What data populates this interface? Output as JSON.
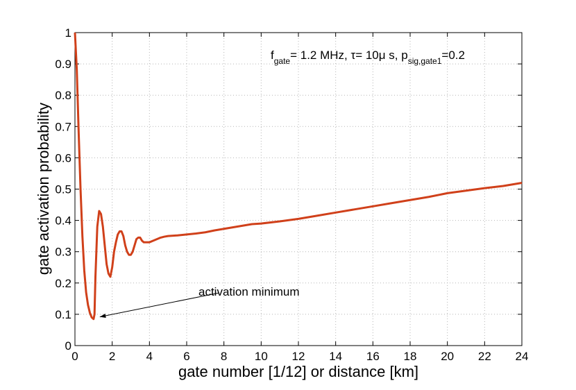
{
  "chart_data": {
    "type": "line",
    "title": "",
    "xlabel": "gate number [1/12] or distance [km]",
    "ylabel": "gate activation probability",
    "xlim": [
      0,
      24
    ],
    "ylim": [
      0,
      1
    ],
    "xticks": [
      0,
      2,
      4,
      6,
      8,
      10,
      12,
      14,
      16,
      18,
      20,
      22,
      24
    ],
    "yticks": [
      0,
      0.1,
      0.2,
      0.3,
      0.4,
      0.5,
      0.6,
      0.7,
      0.8,
      0.9,
      1
    ],
    "ytick_labels": [
      "0",
      "0.1",
      "0.2",
      "0.3",
      "0.4",
      "0.5",
      "0.6",
      "0.7",
      "0.8",
      "0.9",
      "1"
    ],
    "grid": true,
    "line_color": "#d0401a",
    "series": [
      {
        "name": "gate activation probability",
        "x": [
          0,
          0.1,
          0.2,
          0.3,
          0.4,
          0.5,
          0.6,
          0.7,
          0.8,
          0.9,
          1.0,
          1.05,
          1.1,
          1.2,
          1.3,
          1.4,
          1.5,
          1.6,
          1.7,
          1.8,
          1.9,
          2.0,
          2.1,
          2.2,
          2.3,
          2.4,
          2.5,
          2.6,
          2.7,
          2.8,
          2.9,
          3.0,
          3.1,
          3.2,
          3.3,
          3.4,
          3.5,
          3.6,
          3.7,
          3.8,
          3.9,
          4.0,
          4.2,
          4.4,
          4.6,
          4.8,
          5.0,
          5.5,
          6.0,
          6.5,
          7.0,
          7.5,
          8.0,
          8.5,
          9.0,
          9.5,
          10.0,
          11.0,
          12.0,
          13.0,
          14.0,
          15.0,
          16.0,
          17.0,
          18.0,
          19.0,
          20.0,
          21.0,
          22.0,
          23.0,
          24.0
        ],
        "y": [
          1.0,
          0.88,
          0.68,
          0.5,
          0.35,
          0.24,
          0.17,
          0.13,
          0.105,
          0.09,
          0.085,
          0.1,
          0.22,
          0.38,
          0.43,
          0.42,
          0.38,
          0.32,
          0.26,
          0.23,
          0.22,
          0.25,
          0.3,
          0.33,
          0.355,
          0.365,
          0.365,
          0.35,
          0.32,
          0.3,
          0.29,
          0.29,
          0.3,
          0.32,
          0.34,
          0.345,
          0.345,
          0.335,
          0.33,
          0.33,
          0.33,
          0.33,
          0.335,
          0.34,
          0.345,
          0.348,
          0.35,
          0.352,
          0.355,
          0.358,
          0.362,
          0.368,
          0.373,
          0.378,
          0.383,
          0.388,
          0.39,
          0.397,
          0.405,
          0.415,
          0.425,
          0.435,
          0.445,
          0.455,
          0.465,
          0.475,
          0.487,
          0.495,
          0.503,
          0.51,
          0.52
        ]
      }
    ],
    "annotations": [
      {
        "text": "activation minimum",
        "x": 7.8,
        "y": 0.175,
        "points_to": [
          1.0,
          0.085
        ]
      }
    ],
    "param_label": {
      "f": "f",
      "f_sub": "gate",
      "mid1": "= 1.2 MHz, τ= 10μ s, p",
      "p_sub": "sig,gate1",
      "tail": "=0.2"
    }
  }
}
